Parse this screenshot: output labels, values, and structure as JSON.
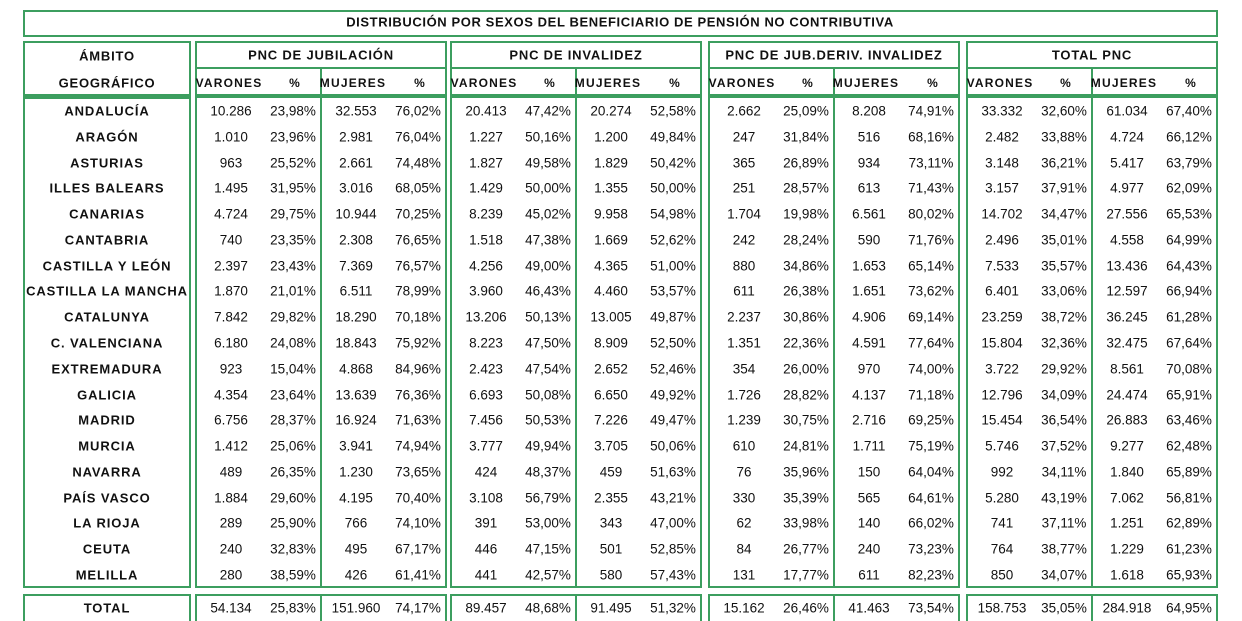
{
  "title": "DISTRIBUCIÓN POR SEXOS DEL BENEFICIARIO DE PENSIÓN NO CONTRIBUTIVA",
  "header": {
    "ambito_line1": "ÁMBITO",
    "ambito_line2": "GEOGRÁFICO",
    "groups": [
      "PNC DE JUBILACIÓN",
      "PNC DE INVALIDEZ",
      "PNC DE JUB.DERIV. INVALIDEZ",
      "TOTAL PNC"
    ],
    "subcols": [
      "VARONES",
      "%",
      "MUJERES",
      "%"
    ]
  },
  "border_color": "#3c9e5f",
  "rows": [
    {
      "name": "ANDALUCÍA",
      "values": [
        "10.286",
        "23,98%",
        "32.553",
        "76,02%",
        "20.413",
        "47,42%",
        "20.274",
        "52,58%",
        "2.662",
        "25,09%",
        "8.208",
        "74,91%",
        "33.332",
        "32,60%",
        "61.034",
        "67,40%"
      ]
    },
    {
      "name": "ARAGÓN",
      "values": [
        "1.010",
        "23,96%",
        "2.981",
        "76,04%",
        "1.227",
        "50,16%",
        "1.200",
        "49,84%",
        "247",
        "31,84%",
        "516",
        "68,16%",
        "2.482",
        "33,88%",
        "4.724",
        "66,12%"
      ]
    },
    {
      "name": "ASTURIAS",
      "values": [
        "963",
        "25,52%",
        "2.661",
        "74,48%",
        "1.827",
        "49,58%",
        "1.829",
        "50,42%",
        "365",
        "26,89%",
        "934",
        "73,11%",
        "3.148",
        "36,21%",
        "5.417",
        "63,79%"
      ]
    },
    {
      "name": "ILLES BALEARS",
      "values": [
        "1.495",
        "31,95%",
        "3.016",
        "68,05%",
        "1.429",
        "50,00%",
        "1.355",
        "50,00%",
        "251",
        "28,57%",
        "613",
        "71,43%",
        "3.157",
        "37,91%",
        "4.977",
        "62,09%"
      ]
    },
    {
      "name": "CANARIAS",
      "values": [
        "4.724",
        "29,75%",
        "10.944",
        "70,25%",
        "8.239",
        "45,02%",
        "9.958",
        "54,98%",
        "1.704",
        "19,98%",
        "6.561",
        "80,02%",
        "14.702",
        "34,47%",
        "27.556",
        "65,53%"
      ]
    },
    {
      "name": "CANTABRIA",
      "values": [
        "740",
        "23,35%",
        "2.308",
        "76,65%",
        "1.518",
        "47,38%",
        "1.669",
        "52,62%",
        "242",
        "28,24%",
        "590",
        "71,76%",
        "2.496",
        "35,01%",
        "4.558",
        "64,99%"
      ]
    },
    {
      "name": "CASTILLA Y LEÓN",
      "values": [
        "2.397",
        "23,43%",
        "7.369",
        "76,57%",
        "4.256",
        "49,00%",
        "4.365",
        "51,00%",
        "880",
        "34,86%",
        "1.653",
        "65,14%",
        "7.533",
        "35,57%",
        "13.436",
        "64,43%"
      ]
    },
    {
      "name": "CASTILLA LA MANCHA",
      "values": [
        "1.870",
        "21,01%",
        "6.511",
        "78,99%",
        "3.960",
        "46,43%",
        "4.460",
        "53,57%",
        "611",
        "26,38%",
        "1.651",
        "73,62%",
        "6.401",
        "33,06%",
        "12.597",
        "66,94%"
      ]
    },
    {
      "name": "CATALUNYA",
      "values": [
        "7.842",
        "29,82%",
        "18.290",
        "70,18%",
        "13.206",
        "50,13%",
        "13.005",
        "49,87%",
        "2.237",
        "30,86%",
        "4.906",
        "69,14%",
        "23.259",
        "38,72%",
        "36.245",
        "61,28%"
      ]
    },
    {
      "name": "C. VALENCIANA",
      "values": [
        "6.180",
        "24,08%",
        "18.843",
        "75,92%",
        "8.223",
        "47,50%",
        "8.909",
        "52,50%",
        "1.351",
        "22,36%",
        "4.591",
        "77,64%",
        "15.804",
        "32,36%",
        "32.475",
        "67,64%"
      ]
    },
    {
      "name": "EXTREMADURA",
      "values": [
        "923",
        "15,04%",
        "4.868",
        "84,96%",
        "2.423",
        "47,54%",
        "2.652",
        "52,46%",
        "354",
        "26,00%",
        "970",
        "74,00%",
        "3.722",
        "29,92%",
        "8.561",
        "70,08%"
      ]
    },
    {
      "name": "GALICIA",
      "values": [
        "4.354",
        "23,64%",
        "13.639",
        "76,36%",
        "6.693",
        "50,08%",
        "6.650",
        "49,92%",
        "1.726",
        "28,82%",
        "4.137",
        "71,18%",
        "12.796",
        "34,09%",
        "24.474",
        "65,91%"
      ]
    },
    {
      "name": "MADRID",
      "values": [
        "6.756",
        "28,37%",
        "16.924",
        "71,63%",
        "7.456",
        "50,53%",
        "7.226",
        "49,47%",
        "1.239",
        "30,75%",
        "2.716",
        "69,25%",
        "15.454",
        "36,54%",
        "26.883",
        "63,46%"
      ]
    },
    {
      "name": "MURCIA",
      "values": [
        "1.412",
        "25,06%",
        "3.941",
        "74,94%",
        "3.777",
        "49,94%",
        "3.705",
        "50,06%",
        "610",
        "24,81%",
        "1.711",
        "75,19%",
        "5.746",
        "37,52%",
        "9.277",
        "62,48%"
      ]
    },
    {
      "name": "NAVARRA",
      "values": [
        "489",
        "26,35%",
        "1.230",
        "73,65%",
        "424",
        "48,37%",
        "459",
        "51,63%",
        "76",
        "35,96%",
        "150",
        "64,04%",
        "992",
        "34,11%",
        "1.840",
        "65,89%"
      ]
    },
    {
      "name": "PAÍS VASCO",
      "values": [
        "1.884",
        "29,60%",
        "4.195",
        "70,40%",
        "3.108",
        "56,79%",
        "2.355",
        "43,21%",
        "330",
        "35,39%",
        "565",
        "64,61%",
        "5.280",
        "43,19%",
        "7.062",
        "56,81%"
      ]
    },
    {
      "name": "LA RIOJA",
      "values": [
        "289",
        "25,90%",
        "766",
        "74,10%",
        "391",
        "53,00%",
        "343",
        "47,00%",
        "62",
        "33,98%",
        "140",
        "66,02%",
        "741",
        "37,11%",
        "1.251",
        "62,89%"
      ]
    },
    {
      "name": "CEUTA",
      "values": [
        "240",
        "32,83%",
        "495",
        "67,17%",
        "446",
        "47,15%",
        "501",
        "52,85%",
        "84",
        "26,77%",
        "240",
        "73,23%",
        "764",
        "38,77%",
        "1.229",
        "61,23%"
      ]
    },
    {
      "name": "MELILLA",
      "values": [
        "280",
        "38,59%",
        "426",
        "61,41%",
        "441",
        "42,57%",
        "580",
        "57,43%",
        "131",
        "17,77%",
        "611",
        "82,23%",
        "850",
        "34,07%",
        "1.618",
        "65,93%"
      ]
    }
  ],
  "total": {
    "name": "TOTAL",
    "values": [
      "54.134",
      "25,83%",
      "151.960",
      "74,17%",
      "89.457",
      "48,68%",
      "91.495",
      "51,32%",
      "15.162",
      "26,46%",
      "41.463",
      "73,54%",
      "158.753",
      "35,05%",
      "284.918",
      "64,95%"
    ]
  }
}
